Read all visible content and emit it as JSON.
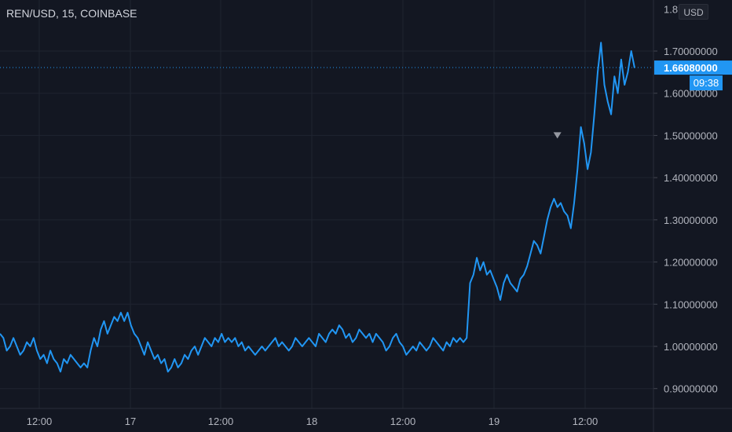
{
  "header": {
    "title": "REN/USD, 15, COINBASE"
  },
  "price_scale": {
    "currency_label": "USD"
  },
  "last_price": {
    "value_label": "1.66080000",
    "countdown": "09:38",
    "value": 1.6608,
    "color": "#2196f3"
  },
  "colors": {
    "background": "#131722",
    "line": "#2196f3",
    "grid": "#1f2430",
    "text": "#b2b5be"
  },
  "chart_data": {
    "type": "line",
    "title": "REN/USD, 15, COINBASE",
    "xlabel": "",
    "ylabel": "",
    "ylim": [
      0.85,
      1.8
    ],
    "y_ticks": [
      0.9,
      1.0,
      1.1,
      1.2,
      1.3,
      1.4,
      1.5,
      1.6,
      1.7
    ],
    "y_tick_labels": [
      "0.90000000",
      "1.00000000",
      "1.10000000",
      "1.20000000",
      "1.30000000",
      "1.40000000",
      "1.50000000",
      "1.60000000",
      "1.70000000"
    ],
    "y_top_partial_label": "1.8",
    "x_tick_labels": [
      "12:00",
      "17",
      "12:00",
      "18",
      "12:00",
      "19",
      "12:00"
    ],
    "grid": true,
    "marker": {
      "x_index": 166,
      "value": 1.5,
      "symbol": "down-triangle"
    },
    "series": [
      {
        "values": [
          1.03,
          1.02,
          0.99,
          1.0,
          1.02,
          1.0,
          0.98,
          0.99,
          1.01,
          1.0,
          1.02,
          0.99,
          0.97,
          0.98,
          0.96,
          0.99,
          0.97,
          0.96,
          0.94,
          0.97,
          0.96,
          0.98,
          0.97,
          0.96,
          0.95,
          0.96,
          0.95,
          0.99,
          1.02,
          1.0,
          1.04,
          1.06,
          1.03,
          1.05,
          1.07,
          1.06,
          1.08,
          1.06,
          1.08,
          1.05,
          1.03,
          1.02,
          1.0,
          0.98,
          1.01,
          0.99,
          0.97,
          0.98,
          0.96,
          0.97,
          0.94,
          0.95,
          0.97,
          0.95,
          0.96,
          0.98,
          0.97,
          0.99,
          1.0,
          0.98,
          1.0,
          1.02,
          1.01,
          1.0,
          1.02,
          1.01,
          1.03,
          1.01,
          1.02,
          1.01,
          1.02,
          1.0,
          1.01,
          0.99,
          1.0,
          0.99,
          0.98,
          0.99,
          1.0,
          0.99,
          1.0,
          1.01,
          1.02,
          1.0,
          1.01,
          1.0,
          0.99,
          1.0,
          1.02,
          1.01,
          1.0,
          1.01,
          1.02,
          1.01,
          1.0,
          1.03,
          1.02,
          1.01,
          1.03,
          1.04,
          1.03,
          1.05,
          1.04,
          1.02,
          1.03,
          1.01,
          1.02,
          1.04,
          1.03,
          1.02,
          1.03,
          1.01,
          1.03,
          1.02,
          1.01,
          0.99,
          1.0,
          1.02,
          1.03,
          1.01,
          1.0,
          0.98,
          0.99,
          1.0,
          0.99,
          1.01,
          1.0,
          0.99,
          1.0,
          1.02,
          1.01,
          1.0,
          0.99,
          1.01,
          1.0,
          1.02,
          1.01,
          1.02,
          1.01,
          1.02,
          1.15,
          1.17,
          1.21,
          1.18,
          1.2,
          1.17,
          1.18,
          1.16,
          1.14,
          1.11,
          1.15,
          1.17,
          1.15,
          1.14,
          1.13,
          1.16,
          1.17,
          1.19,
          1.22,
          1.25,
          1.24,
          1.22,
          1.26,
          1.3,
          1.33,
          1.35,
          1.33,
          1.34,
          1.32,
          1.31,
          1.28,
          1.34,
          1.42,
          1.52,
          1.48,
          1.42,
          1.46,
          1.55,
          1.65,
          1.72,
          1.62,
          1.58,
          1.55,
          1.64,
          1.6,
          1.68,
          1.62,
          1.65,
          1.7,
          1.66
        ]
      }
    ]
  }
}
